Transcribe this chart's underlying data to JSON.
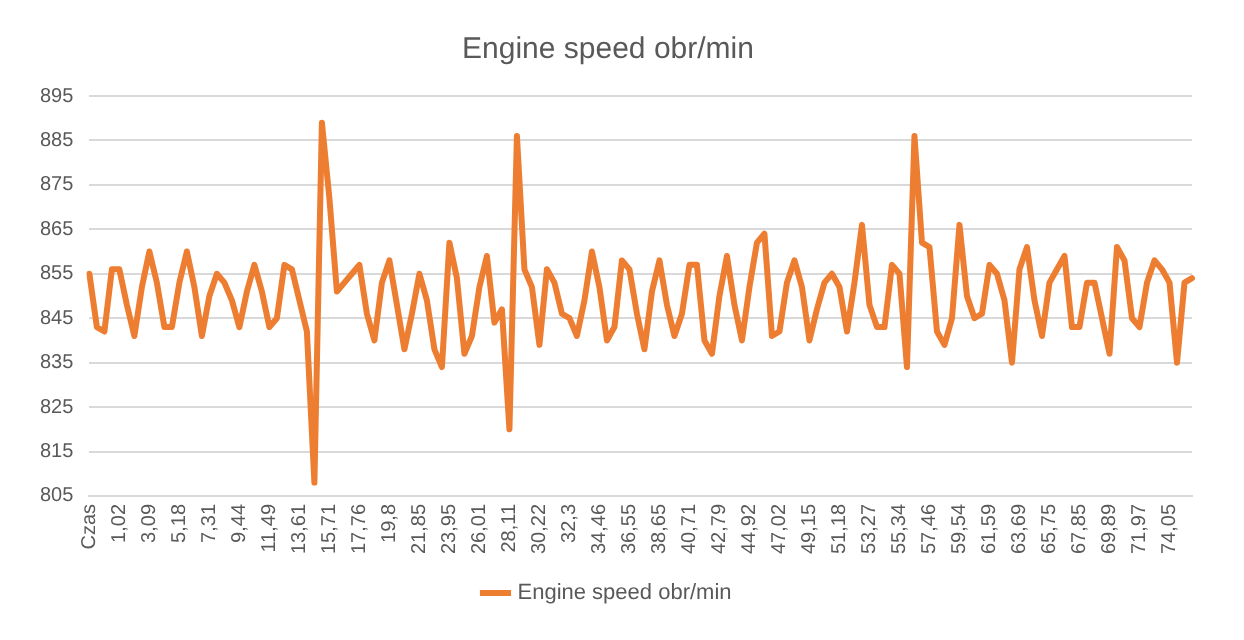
{
  "chart_data": {
    "type": "line",
    "title": "Engine speed obr/min",
    "categories": [
      "Czas",
      null,
      null,
      null,
      "1,02",
      null,
      null,
      null,
      "3,09",
      null,
      null,
      null,
      "5,18",
      null,
      null,
      null,
      "7,31",
      null,
      null,
      null,
      "9,44",
      null,
      null,
      null,
      "11,49",
      null,
      null,
      null,
      "13,61",
      null,
      null,
      null,
      "15,71",
      null,
      null,
      null,
      "17,76",
      null,
      null,
      null,
      "19,8",
      null,
      null,
      null,
      "21,85",
      null,
      null,
      null,
      "23,95",
      null,
      null,
      null,
      "26,01",
      null,
      null,
      null,
      "28,11",
      null,
      null,
      null,
      "30,22",
      null,
      null,
      null,
      "32,3",
      null,
      null,
      null,
      "34,46",
      null,
      null,
      null,
      "36,55",
      null,
      null,
      null,
      "38,65",
      null,
      null,
      null,
      "40,71",
      null,
      null,
      null,
      "42,79",
      null,
      null,
      null,
      "44,92",
      null,
      null,
      null,
      "47,02",
      null,
      null,
      null,
      "49,15",
      null,
      null,
      null,
      "51,18",
      null,
      null,
      null,
      "53,27",
      null,
      null,
      null,
      "55,34",
      null,
      null,
      null,
      "57,46",
      null,
      null,
      null,
      "59,54",
      null,
      null,
      null,
      "61,59",
      null,
      null,
      null,
      "63,69",
      null,
      null,
      null,
      "65,75",
      null,
      null,
      null,
      "67,85",
      null,
      null,
      null,
      "69,89",
      null,
      null,
      null,
      "71,97",
      null,
      null,
      null,
      "74,05",
      null,
      null,
      null
    ],
    "series": [
      {
        "name": "Engine speed obr/min",
        "color": "#ed7d31",
        "values": [
          855,
          843,
          842,
          856,
          856,
          848,
          841,
          852,
          860,
          853,
          843,
          843,
          853,
          860,
          852,
          841,
          850,
          855,
          853,
          849,
          843,
          851,
          857,
          851,
          843,
          845,
          857,
          856,
          849,
          842,
          808,
          889,
          872,
          851,
          853,
          855,
          857,
          846,
          840,
          853,
          858,
          848,
          838,
          846,
          855,
          849,
          838,
          834,
          862,
          854,
          837,
          841,
          852,
          859,
          844,
          847,
          820,
          886,
          856,
          852,
          839,
          856,
          853,
          846,
          845,
          841,
          849,
          860,
          852,
          840,
          843,
          858,
          856,
          846,
          838,
          851,
          858,
          848,
          841,
          846,
          857,
          857,
          840,
          837,
          850,
          859,
          848,
          840,
          852,
          862,
          864,
          841,
          842,
          853,
          858,
          852,
          840,
          847,
          853,
          855,
          852,
          842,
          853,
          866,
          848,
          843,
          843,
          857,
          855,
          834,
          886,
          862,
          861,
          842,
          839,
          845,
          866,
          850,
          845,
          846,
          857,
          855,
          849,
          835,
          856,
          861,
          849,
          841,
          853,
          856,
          859,
          843,
          843,
          853,
          853,
          845,
          837,
          861,
          858,
          845,
          843,
          853,
          858,
          856,
          853,
          835,
          853,
          854
        ]
      }
    ],
    "ylim": [
      805,
      895
    ],
    "yticks": [
      805,
      815,
      825,
      835,
      845,
      855,
      865,
      875,
      885,
      895
    ],
    "grid": "y",
    "legend": "bottom",
    "marker": "none",
    "line_style": "solid"
  }
}
